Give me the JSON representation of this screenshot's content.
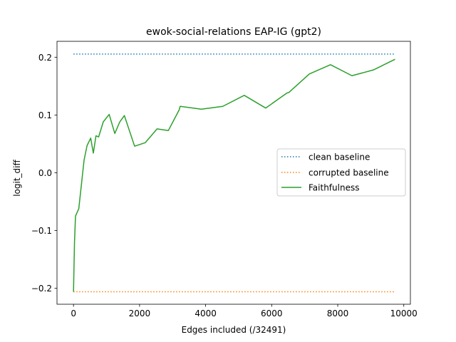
{
  "chart_data": {
    "type": "line",
    "title": "ewok-social-relations EAP-IG (gpt2)",
    "xlabel": "Edges included (/32491)",
    "ylabel": "logit_diff",
    "xlim": [
      -500,
      10200
    ],
    "ylim": [
      -0.2275,
      0.2275
    ],
    "xticks": [
      0,
      2000,
      4000,
      6000,
      8000,
      10000
    ],
    "xtick_labels": [
      "0",
      "2000",
      "4000",
      "6000",
      "8000",
      "10000"
    ],
    "yticks": [
      -0.2,
      -0.1,
      0.0,
      0.1,
      0.2
    ],
    "ytick_labels": [
      "−0.2",
      "−0.1",
      "0.0",
      "0.1",
      "0.2"
    ],
    "grid": false,
    "legend_position": "center-right",
    "series": [
      {
        "name": "clean baseline",
        "style": "dotted",
        "color": "#1f77b4",
        "x": [
          0,
          9720
        ],
        "y": [
          0.2055,
          0.2055
        ]
      },
      {
        "name": "corrupted baseline",
        "style": "dotted",
        "color": "#ff7f0e",
        "x": [
          0,
          9720
        ],
        "y": [
          -0.206,
          -0.206
        ]
      },
      {
        "name": "Faithfulness",
        "style": "solid",
        "color": "#2ca02c",
        "x": [
          0,
          30,
          60,
          160,
          320,
          410,
          520,
          600,
          680,
          760,
          900,
          1080,
          1250,
          1400,
          1540,
          1850,
          2170,
          2530,
          2870,
          3200,
          3230,
          3870,
          4520,
          5170,
          5820,
          6460,
          6520,
          7140,
          7780,
          8430,
          9080,
          9720
        ],
        "y": [
          -0.205,
          -0.12,
          -0.075,
          -0.062,
          0.022,
          0.047,
          0.06,
          0.034,
          0.064,
          0.062,
          0.088,
          0.101,
          0.068,
          0.088,
          0.099,
          0.046,
          0.052,
          0.076,
          0.073,
          0.109,
          0.115,
          0.11,
          0.115,
          0.134,
          0.112,
          0.138,
          0.139,
          0.171,
          0.187,
          0.168,
          0.178,
          0.196
        ]
      }
    ]
  }
}
